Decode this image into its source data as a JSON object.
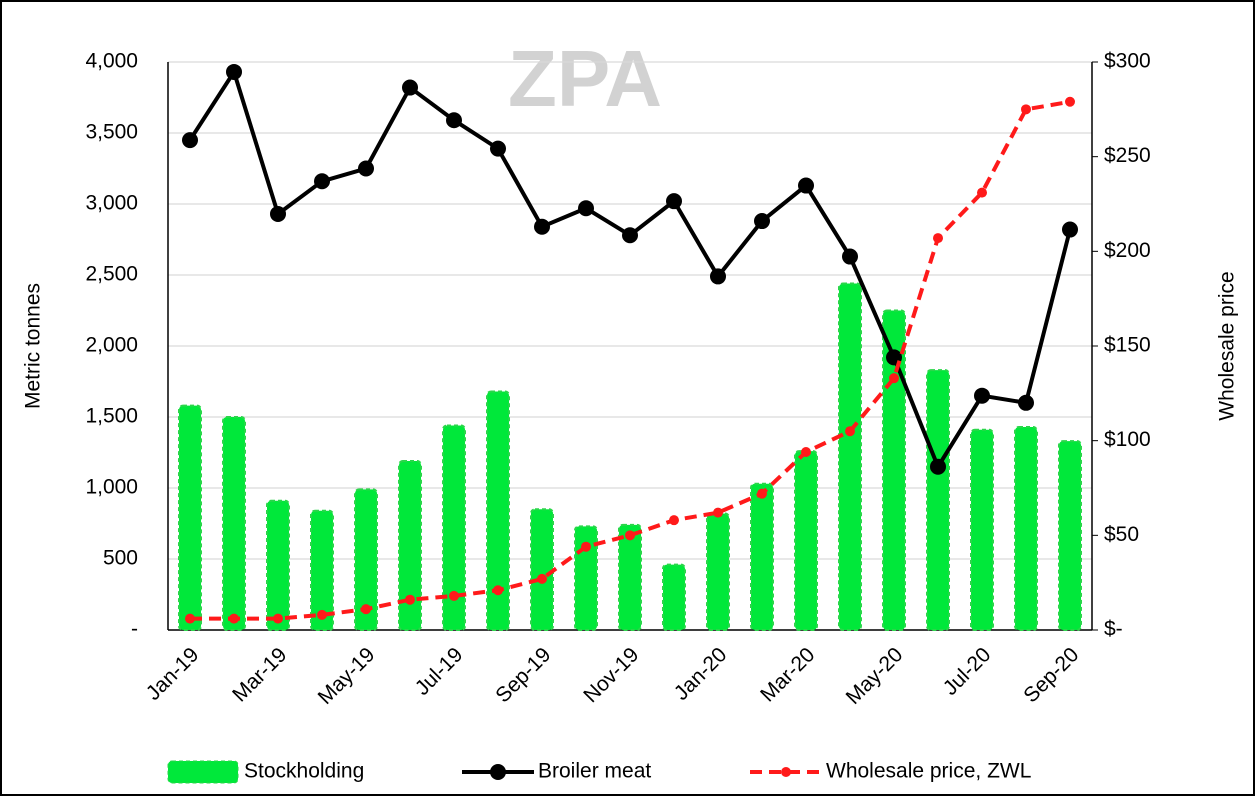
{
  "chart_data": {
    "type": "combo",
    "watermark": "ZPA",
    "y_label": "Metric tonnes",
    "y2_label": "Wholesale price",
    "categories": [
      "Jan-19",
      null,
      "Mar-19",
      null,
      "May-19",
      null,
      "Jul-19",
      null,
      "Sep-19",
      null,
      "Nov-19",
      null,
      "Jan-20",
      null,
      "Mar-20",
      null,
      "May-20",
      null,
      "Jul-20",
      null,
      "Sep-20"
    ],
    "ylim": [
      0,
      4000
    ],
    "yticks": [
      {
        "value": 0,
        "label": "-"
      },
      500,
      {
        "value": 1000,
        "label": "1,000"
      },
      {
        "value": 1500,
        "label": "1,500"
      },
      {
        "value": 2000,
        "label": "2,000"
      },
      {
        "value": 2500,
        "label": "2,500"
      },
      {
        "value": 3000,
        "label": "3,000"
      },
      {
        "value": 3500,
        "label": "3,500"
      },
      {
        "value": 4000,
        "label": "4,000"
      }
    ],
    "y2lim": [
      0,
      300
    ],
    "y2ticks": [
      {
        "value": 0,
        "label": "$-"
      },
      {
        "value": 50,
        "label": "$50"
      },
      {
        "value": 100,
        "label": "$100"
      },
      {
        "value": 150,
        "label": "$150"
      },
      {
        "value": 200,
        "label": "$200"
      },
      {
        "value": 250,
        "label": "$250"
      },
      {
        "value": 300,
        "label": "$300"
      }
    ],
    "grid": true,
    "legend": "bottom",
    "series": [
      {
        "name": "Stockholding",
        "type": "bar",
        "color": "#00e83a",
        "values": [
          1580,
          1500,
          910,
          840,
          990,
          1190,
          1440,
          1680,
          850,
          730,
          740,
          460,
          820,
          1030,
          1260,
          2440,
          2250,
          1830,
          1410,
          1430,
          1330
        ]
      },
      {
        "name": "Broiler meat",
        "type": "line",
        "color": "#000000",
        "dashed": false,
        "values": [
          3450,
          3930,
          2930,
          3160,
          3250,
          3820,
          3590,
          3390,
          2840,
          2970,
          2780,
          3020,
          2490,
          2880,
          3130,
          2630,
          1920,
          1150,
          1650,
          1600,
          2820
        ]
      },
      {
        "name": "Wholesale price, ZWL",
        "type": "line",
        "color": "#ff1a1a",
        "dashed": true,
        "axis": "y2",
        "values": [
          6,
          6,
          6,
          8,
          11,
          16,
          18,
          21,
          27,
          44,
          50,
          58,
          62,
          72,
          94,
          105,
          133,
          207,
          231,
          275,
          279
        ]
      }
    ]
  }
}
